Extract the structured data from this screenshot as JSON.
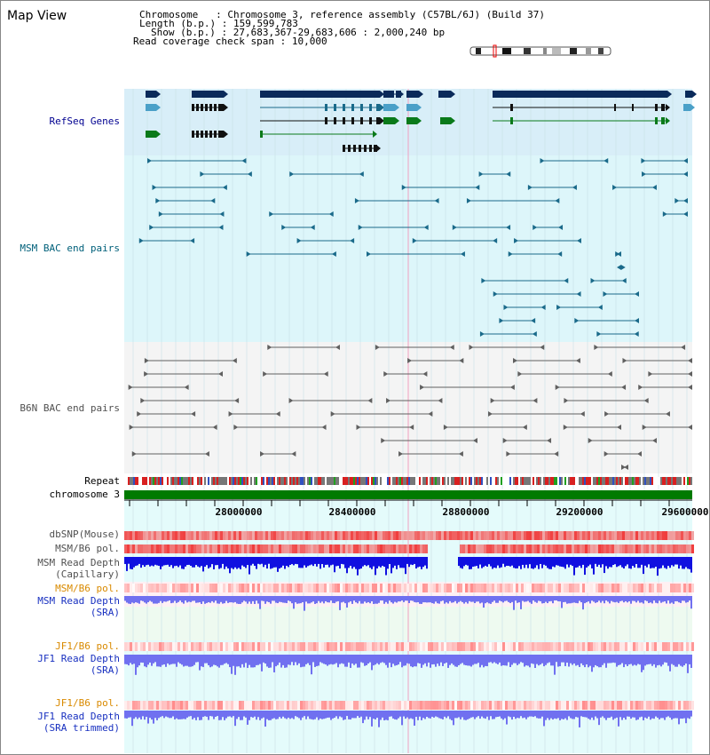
{
  "title": "Map View",
  "info": {
    "chromosome_label": "Chromosome",
    "chromosome_value": "Chromosome 3, reference assembly (C57BL/6J) (Build 37)",
    "length_label": "Length (b.p.)",
    "length_value": "159,599,783",
    "show_label": "Show (b.p.)",
    "show_value": "27,683,367-29,683,606 : 2,000,240 bp",
    "span_label": "Read coverage check span",
    "span_value": "10,000"
  },
  "tracks": {
    "refseq": "RefSeq Genes",
    "msm_bac": "MSM BAC end pairs",
    "b6n_bac": "B6N BAC end pairs",
    "repeat": "Repeat",
    "chromosome": "chromosome 3",
    "dbsnp": "dbSNP(Mouse)",
    "msm_b6_pol_1": "MSM/B6 pol.",
    "msm_depth_cap_1": "MSM Read Depth",
    "msm_depth_cap_2": "(Capillary)",
    "msm_b6_pol_2": "MSM/B6 pol.",
    "msm_depth_sra_1": "MSM Read Depth",
    "msm_depth_sra_2": "(SRA)",
    "jf1_b6_pol_1": "JF1/B6 pol.",
    "jf1_depth_sra_1": "JF1 Read Depth",
    "jf1_depth_sra_2": "(SRA)",
    "jf1_b6_pol_2": "JF1/B6 pol.",
    "jf1_depth_trim_1": "JF1 Read Depth",
    "jf1_depth_trim_2": "(SRA trimmed)"
  },
  "axis": {
    "ticks": [
      "28000000",
      "28400000",
      "28800000",
      "29200000",
      "29600000"
    ],
    "tick_values": [
      28000000,
      28400000,
      28800000,
      29200000,
      29600000
    ],
    "start": 27683367,
    "end": 29683606
  },
  "colors": {
    "refseq_bg": "#d8eef8",
    "msm_bg": "#ddf6fa",
    "b6n_bg": "#f4f4f4",
    "lower_bg": "#e4fbfb",
    "gene_dark": "#0a2a5a",
    "gene_light": "#4aa0c8",
    "gene_green": "#0a7a1a",
    "msm_pair": "#1a6a8a",
    "b6n_pair": "#606060",
    "chrom": "#007a00",
    "pol": "#e04040",
    "depth_dark": "#1010e0",
    "depth_light": "#7070f0"
  }
}
